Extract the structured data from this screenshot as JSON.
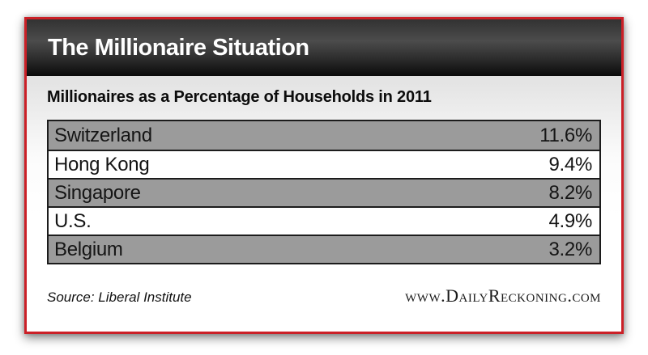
{
  "header": {
    "title": "The Millionaire Situation"
  },
  "subtitle": "Millionaires as a Percentage of Households in 2011",
  "table": {
    "rows": [
      {
        "country": "Switzerland",
        "value": "11.6%"
      },
      {
        "country": "Hong Kong",
        "value": "9.4%"
      },
      {
        "country": "Singapore",
        "value": "8.2%"
      },
      {
        "country": "U.S.",
        "value": "4.9%"
      },
      {
        "country": "Belgium",
        "value": "3.2%"
      }
    ]
  },
  "footer": {
    "source": "Source: Liberal Institute",
    "website": "www.DailyReckoning.com"
  },
  "colors": {
    "frame_red": "#cb2027",
    "row_gray": "#9b9b9b",
    "row_white": "#ffffff",
    "table_border": "#1c1c1c",
    "titlebar_top": "#4c4c4c",
    "titlebar_bottom": "#0a0a0a"
  },
  "chart_data": {
    "type": "table",
    "title": "The Millionaire Situation",
    "subtitle": "Millionaires as a Percentage of Households in 2011",
    "categories": [
      "Switzerland",
      "Hong Kong",
      "Singapore",
      "U.S.",
      "Belgium"
    ],
    "values": [
      11.6,
      9.4,
      8.2,
      4.9,
      3.2
    ],
    "value_unit": "% of households",
    "source": "Source: Liberal Institute",
    "website": "www.DailyReckoning.com",
    "layout": "two-column table, country left-aligned, value right-aligned, alternating gray/white rows starting gray"
  }
}
